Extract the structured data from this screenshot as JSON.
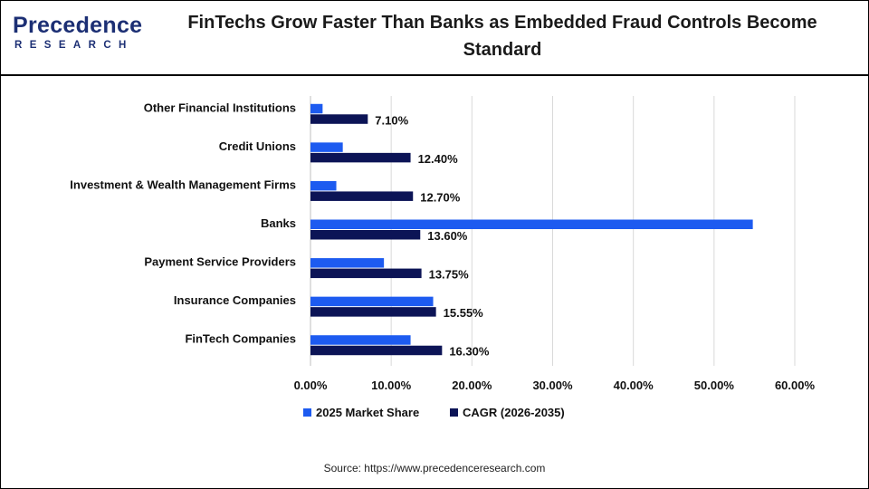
{
  "header": {
    "title": "FinTechs Grow Faster Than Banks as Embedded Fraud Controls Become Standard",
    "logo_main": "Precedence",
    "logo_sub": "RESEARCH"
  },
  "source": "Source: https://www.precedenceresearch.com",
  "colors": {
    "market_share": "#1d5bf0",
    "cagr": "#0c1456",
    "grid": "#d9d9d9"
  },
  "chart_data": {
    "type": "bar",
    "orientation": "horizontal",
    "categories": [
      "Other Financial Institutions",
      "Credit Unions",
      "Investment & Wealth Management Firms",
      "Banks",
      "Payment Service Providers",
      "Insurance Companies",
      "FinTech Companies"
    ],
    "series": [
      {
        "name": "2025 Market Share",
        "values": [
          1.5,
          4.0,
          3.2,
          54.8,
          9.1,
          15.2,
          12.4
        ],
        "labels": [
          "",
          "",
          "",
          "",
          "",
          "",
          ""
        ]
      },
      {
        "name": "CAGR (2026-2035)",
        "values": [
          7.1,
          12.4,
          12.7,
          13.6,
          13.75,
          15.55,
          16.3
        ],
        "labels": [
          "7.10%",
          "12.40%",
          "12.70%",
          "13.60%",
          "13.75%",
          "15.55%",
          "16.30%"
        ]
      }
    ],
    "xlim": [
      0,
      60
    ],
    "xticks": [
      0,
      10,
      20,
      30,
      40,
      50,
      60
    ],
    "xtick_labels": [
      "0.00%",
      "10.00%",
      "20.00%",
      "30.00%",
      "40.00%",
      "50.00%",
      "60.00%"
    ],
    "grid": true,
    "legend": "bottom"
  }
}
